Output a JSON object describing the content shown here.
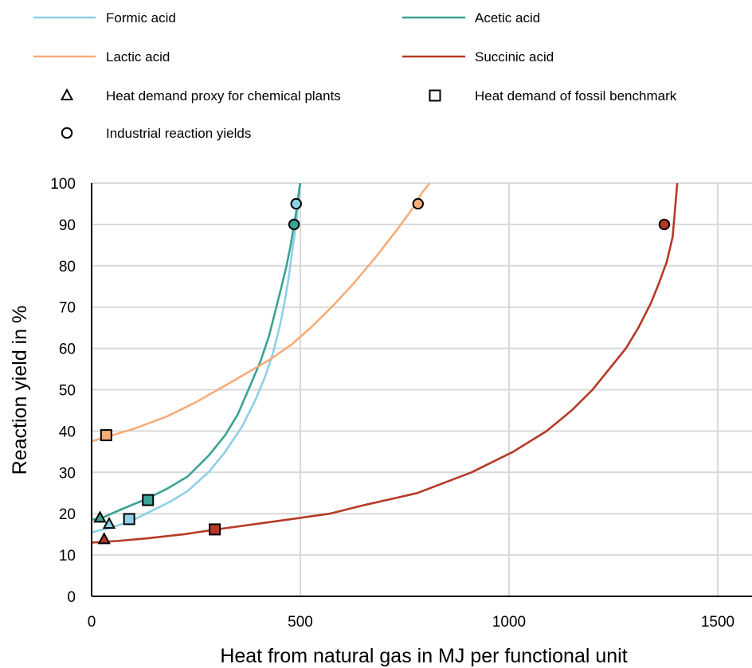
{
  "chart_data": {
    "type": "line",
    "title": "",
    "xlabel": "Heat from natural gas in MJ per functional unit",
    "ylabel": "Reaction yield in %",
    "xlim": [
      0,
      1600
    ],
    "ylim": [
      0,
      100
    ],
    "x_ticks": [
      "0",
      "500",
      "1000",
      "1500"
    ],
    "x_tick_values": [
      0,
      500,
      1000,
      1500
    ],
    "y_ticks": [
      "0",
      "10",
      "20",
      "30",
      "40",
      "50",
      "60",
      "70",
      "80",
      "90",
      "100"
    ],
    "y_tick_values": [
      0,
      10,
      20,
      30,
      40,
      50,
      60,
      70,
      80,
      90,
      100
    ],
    "grid": {
      "vertical": true,
      "horizontal": true
    },
    "legend_position": "top",
    "series": [
      {
        "name": "Formic acid",
        "color": "#8fcfe8",
        "x": [
          0,
          40,
          90,
          140,
          190,
          230,
          280,
          320,
          360,
          390,
          415,
          435,
          450,
          462,
          472,
          480,
          487,
          492,
          496,
          499
        ],
        "y": [
          15.5,
          16.5,
          18,
          20.5,
          23,
          25.5,
          30,
          35,
          41,
          47,
          53,
          59,
          65,
          71,
          77,
          83,
          88,
          92,
          96,
          100
        ]
      },
      {
        "name": "Acetic acid",
        "color": "#3aa394",
        "x": [
          0,
          25,
          70,
          130,
          180,
          230,
          280,
          320,
          350,
          380,
          405,
          425,
          440,
          455,
          467,
          477,
          485,
          490,
          494,
          498,
          500
        ],
        "y": [
          18.5,
          19,
          21,
          23.5,
          26,
          29,
          34,
          39,
          44,
          51,
          57,
          63,
          69,
          75,
          80,
          85,
          90,
          93,
          96,
          99,
          100
        ]
      },
      {
        "name": "Lactic acid",
        "color": "#f6ac78",
        "x": [
          0,
          50,
          100,
          180,
          250,
          320,
          380,
          430,
          480,
          530,
          580,
          630,
          680,
          730,
          770,
          790,
          810
        ],
        "y": [
          37.5,
          39,
          40.5,
          43.5,
          47,
          51,
          54.5,
          57.5,
          61,
          65.5,
          70.5,
          76,
          82,
          88.5,
          94,
          97.5,
          100
        ]
      },
      {
        "name": "Succinic acid",
        "color": "#b53a26",
        "x": [
          0,
          60,
          130,
          220,
          300,
          400,
          500,
          570,
          650,
          780,
          910,
          1010,
          1090,
          1150,
          1200,
          1240,
          1280,
          1310,
          1340,
          1360,
          1378,
          1392,
          1403
        ],
        "y": [
          13,
          13.4,
          14,
          15,
          16.2,
          17.6,
          19,
          20,
          22,
          25,
          30,
          35,
          40,
          45,
          50,
          55,
          60,
          65,
          71,
          76,
          81,
          87,
          100
        ]
      }
    ],
    "markers": [
      {
        "series": "Formic acid",
        "kind": "Heat demand proxy for chemical plants",
        "x": 42,
        "y": 17.5
      },
      {
        "series": "Acetic acid",
        "kind": "Heat demand proxy for chemical plants",
        "x": 20,
        "y": 19
      },
      {
        "series": "Succinic acid",
        "kind": "Heat demand proxy for chemical plants",
        "x": 30,
        "y": 13.8
      },
      {
        "series": "Lactic acid",
        "kind": "Heat demand of fossil benchmark",
        "x": 35,
        "y": 39
      },
      {
        "series": "Formic acid",
        "kind": "Heat demand of fossil benchmark",
        "x": 90,
        "y": 18.7
      },
      {
        "series": "Acetic acid",
        "kind": "Heat demand of fossil benchmark",
        "x": 135,
        "y": 23.3
      },
      {
        "series": "Succinic acid",
        "kind": "Heat demand of fossil benchmark",
        "x": 295,
        "y": 16.2
      },
      {
        "series": "Formic acid",
        "kind": "Industrial reaction yields",
        "x": 490,
        "y": 95
      },
      {
        "series": "Acetic acid",
        "kind": "Industrial reaction yields",
        "x": 485,
        "y": 90
      },
      {
        "series": "Lactic acid",
        "kind": "Industrial reaction yields",
        "x": 782,
        "y": 95
      },
      {
        "series": "Succinic acid",
        "kind": "Industrial reaction yields",
        "x": 1372,
        "y": 90
      }
    ],
    "legend": {
      "lines": [
        {
          "label": "Formic acid",
          "color": "#8fcfe8"
        },
        {
          "label": "Acetic acid",
          "color": "#3aa394"
        },
        {
          "label": "Lactic acid",
          "color": "#f6ac78"
        },
        {
          "label": "Succinic acid",
          "color": "#b53a26"
        }
      ],
      "markers": [
        {
          "label": "Heat demand proxy for chemical plants",
          "shape": "triangle"
        },
        {
          "label": "Heat demand of fossil benchmark",
          "shape": "square"
        },
        {
          "label": "Industrial reaction yields",
          "shape": "circle"
        }
      ]
    }
  }
}
